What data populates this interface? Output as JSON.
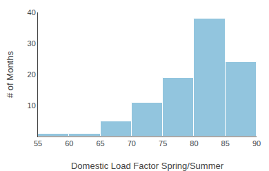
{
  "chart_data": {
    "type": "histogram",
    "bins": [
      55,
      60,
      65,
      70,
      75,
      80,
      85,
      90
    ],
    "values": [
      1,
      1,
      5,
      11,
      19,
      38,
      24
    ],
    "color": "#92c5de",
    "xlabel": "Domestic Load Factor Spring/Summer",
    "ylabel": "# of Months",
    "xlim": [
      55,
      90
    ],
    "xticks": [
      55,
      60,
      65,
      70,
      75,
      80,
      85,
      90
    ],
    "ylim": [
      0,
      40
    ],
    "yticks": [
      10,
      20,
      30,
      40
    ],
    "grid": false
  }
}
